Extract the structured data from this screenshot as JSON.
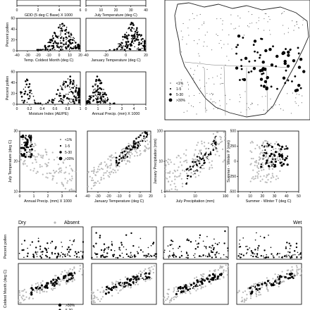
{
  "chart_data": {
    "type": "scatter",
    "panels": [
      {
        "id": "p_gdd",
        "xlabel": "GDD (5 deg C Base) X 1000",
        "ylabel": "",
        "xticks": [
          "0",
          "2",
          "4",
          "6"
        ],
        "yticks": [],
        "xlim": [
          0,
          6
        ],
        "ylim": [
          0,
          40
        ]
      },
      {
        "id": "p_july",
        "xlabel": "July Temperature (deg C)",
        "ylabel": "",
        "xticks": [
          "0",
          "10",
          "20",
          "30",
          "40"
        ],
        "yticks": [],
        "xlim": [
          0,
          40
        ],
        "ylim": [
          0,
          40
        ]
      },
      {
        "id": "p_tcold",
        "xlabel": "Temp. Coldest Month (deg C)",
        "ylabel": "Percent pollen",
        "xticks": [
          "-40",
          "-30",
          "-20",
          "-10",
          "0",
          "10",
          "20"
        ],
        "yticks": [
          "0",
          "20",
          "40",
          "60"
        ],
        "xlim": [
          -40,
          20
        ],
        "ylim": [
          0,
          70
        ]
      },
      {
        "id": "p_jan",
        "xlabel": "January Temperature (deg C)",
        "ylabel": "",
        "xticks": [
          "-40",
          "-20",
          "0",
          "20"
        ],
        "yticks": [],
        "xlim": [
          -40,
          20
        ],
        "ylim": [
          0,
          70
        ]
      },
      {
        "id": "p_moist",
        "xlabel": "Moisture Index (AE/PE)",
        "ylabel": "Percent pollen",
        "xticks": [
          "0",
          "0.2",
          "0.4",
          "0.6",
          "0.8",
          "1"
        ],
        "yticks": [
          "0",
          "20",
          "40",
          "60"
        ],
        "xlim": [
          0,
          1
        ],
        "ylim": [
          0,
          70
        ]
      },
      {
        "id": "p_annprecip",
        "xlabel": "Annual Precip. (mm) X 1000",
        "ylabel": "",
        "xticks": [
          "0",
          "1",
          "2",
          "3",
          "4",
          "5"
        ],
        "yticks": [],
        "xlim": [
          0,
          5
        ],
        "ylim": [
          0,
          70
        ]
      },
      {
        "id": "r2_a",
        "xlabel": "Annual Precip. (mm) X 1000",
        "ylabel": "July Temperature (deg C)",
        "xticks": [
          "0",
          "1",
          "2",
          "3",
          "4"
        ],
        "yticks": [
          "10",
          "20",
          "30"
        ],
        "xlim": [
          0,
          4.5
        ],
        "ylim": [
          5,
          35
        ]
      },
      {
        "id": "r2_b",
        "xlabel": "January Temperature (deg C)",
        "ylabel": "",
        "xticks": [
          "-40",
          "-30",
          "-20",
          "-10",
          "0",
          "10",
          "20"
        ],
        "yticks": [],
        "xlim": [
          -40,
          20
        ],
        "ylim": [
          5,
          35
        ]
      },
      {
        "id": "r2_c",
        "xlabel": "July Precipitation (mm)",
        "ylabel": "January Precipitation (mm)",
        "xticks": [
          "1",
          "10",
          "100"
        ],
        "yticks": [
          "1",
          "10",
          "100"
        ],
        "xlim": [
          1,
          300
        ],
        "ylim": [
          1,
          300
        ]
      },
      {
        "id": "r2_d",
        "xlabel": "Summer - Winter T (deg C)",
        "ylabel": "Summer - Winter P (mm)",
        "xticks": [
          "0",
          "10",
          "20",
          "30",
          "40",
          "50"
        ],
        "yticks": [
          "-500",
          "-250",
          "0",
          "250",
          "500"
        ],
        "xlim": [
          0,
          50
        ],
        "ylim": [
          -500,
          500
        ]
      }
    ],
    "legend_mid": [
      "<1%",
      "1-5",
      "5-30",
      ">30%"
    ],
    "legend_map": [
      "<1%",
      "1-5",
      "5-30",
      ">30%"
    ],
    "legend_bottom": [
      ">30%",
      "5-30"
    ],
    "bottom_row_labels": {
      "left": "Dry",
      "absent": "Absent",
      "right": "Wet"
    },
    "bottom_ylabels": [
      "Percent pollen",
      "Coldest Month (deg C)"
    ]
  },
  "colors": {
    "black": "#000000",
    "gray": "#b8b8b8",
    "dark": "#555555"
  }
}
